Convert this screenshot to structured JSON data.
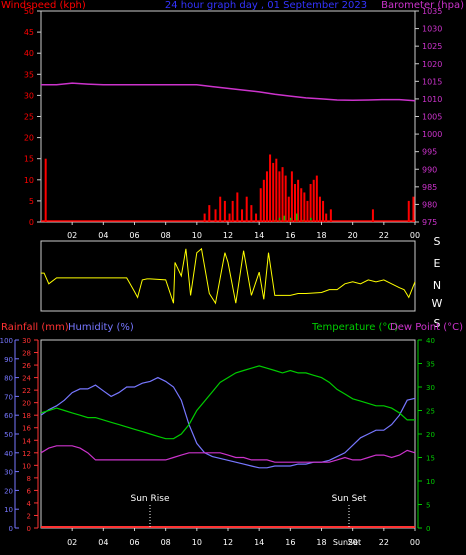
{
  "header": {
    "left_title": "Windspeed (kph)",
    "center_title": "24 hour graph day , 01 September 2023",
    "right_title": "Barometer (hpa)"
  },
  "labels": {
    "rainfall": "Rainfall (mm)",
    "humidity": "Humidity (%)",
    "temperature": "Temperature (°C)",
    "dewpoint": "Dew Point (°C)",
    "sunrise": "Sun Rise",
    "sunset": "Sun Set",
    "sunset_bottom": "SunSet"
  },
  "colors": {
    "wind": "#ff0000",
    "barometer": "#cc33cc",
    "title_blue": "#3333ff",
    "direction": "#ffff00",
    "humidity": "#7777ff",
    "temperature": "#00cc00",
    "dewpoint": "#cc33cc",
    "rainfall": "#ff3333",
    "axis": "#cccccc"
  },
  "x_ticks": [
    "02",
    "04",
    "06",
    "08",
    "10",
    "12",
    "14",
    "16",
    "18",
    "20",
    "22",
    "00"
  ],
  "direction_labels": [
    "S",
    "E",
    "N",
    "W",
    "S"
  ],
  "chart_data": [
    {
      "type": "line",
      "title": "24 hour graph day , 01 September 2023",
      "x_range": [
        0,
        24
      ],
      "left_axis": {
        "label": "Windspeed (kph)",
        "range": [
          0,
          50
        ],
        "ticks": [
          0,
          5,
          10,
          15,
          20,
          25,
          30,
          35,
          40,
          45,
          50
        ]
      },
      "right_axis": {
        "label": "Barometer (hpa)",
        "range": [
          975,
          1035
        ],
        "ticks": [
          975,
          980,
          985,
          990,
          995,
          1000,
          1005,
          1010,
          1015,
          1020,
          1025,
          1030,
          1035
        ]
      },
      "series": [
        {
          "name": "Windspeed (kph)",
          "kind": "bar",
          "axis": "left",
          "x": [
            0.3,
            10.5,
            10.8,
            11.2,
            11.5,
            11.8,
            12.1,
            12.3,
            12.6,
            12.9,
            13.2,
            13.5,
            13.8,
            14.1,
            14.3,
            14.5,
            14.7,
            14.9,
            15.1,
            15.3,
            15.5,
            15.7,
            15.9,
            16.1,
            16.3,
            16.5,
            16.7,
            16.9,
            17.1,
            17.3,
            17.5,
            17.7,
            17.9,
            18.1,
            18.3,
            18.6,
            21.3,
            23.6,
            23.9
          ],
          "values": [
            15,
            2,
            4,
            3,
            6,
            5,
            2,
            5,
            7,
            3,
            6,
            4,
            2,
            8,
            10,
            12,
            16,
            14,
            15,
            12,
            13,
            11,
            6,
            12,
            9,
            10,
            8,
            7,
            5,
            9,
            10,
            11,
            6,
            5,
            2,
            3,
            3,
            5,
            6
          ]
        },
        {
          "name": "Windspeed gust",
          "kind": "bar",
          "axis": "left",
          "x": [
            15.0,
            15.3,
            15.6,
            16.0,
            16.4,
            16.8,
            17.3
          ],
          "values": [
            0.5,
            1,
            1.5,
            1,
            2,
            0.5,
            1
          ]
        },
        {
          "name": "Barometer (hpa)",
          "kind": "line",
          "axis": "right",
          "x": [
            0,
            1,
            2,
            3,
            4,
            5,
            6,
            7,
            8,
            9,
            10,
            11,
            12,
            13,
            14,
            15,
            16,
            17,
            18,
            19,
            20,
            21,
            22,
            23,
            24
          ],
          "values": [
            1014,
            1014,
            1014.5,
            1014.2,
            1014,
            1014,
            1014,
            1014,
            1014,
            1014,
            1014,
            1013.5,
            1013,
            1012.5,
            1012,
            1011.3,
            1010.8,
            1010.3,
            1010,
            1009.7,
            1009.6,
            1009.7,
            1009.8,
            1009.8,
            1009.5
          ]
        }
      ]
    },
    {
      "type": "line",
      "title": "Wind direction",
      "x_range": [
        0,
        24
      ],
      "direction_axis": [
        "S",
        "E",
        "N",
        "W",
        "S"
      ],
      "series": [
        {
          "name": "Wind direction",
          "axis": "direction",
          "x": [
            0,
            0.2,
            0.5,
            1,
            2,
            3,
            4,
            5,
            5.5,
            6.0,
            6.2,
            6.5,
            6.8,
            7,
            8,
            8.5,
            8.6,
            9,
            9.3,
            9.6,
            10,
            10.3,
            10.8,
            11.2,
            11.5,
            11.8,
            12,
            12.5,
            13,
            13.5,
            14,
            14.3,
            14.6,
            15,
            16,
            16.5,
            17,
            18,
            18.5,
            19,
            19.5,
            20,
            20.5,
            21,
            21.5,
            22,
            22.5,
            23,
            23.3,
            23.6,
            24
          ],
          "values": [
            195,
            195,
            140,
            170,
            170,
            170,
            170,
            170,
            170,
            100,
            70,
            160,
            165,
            165,
            160,
            40,
            250,
            180,
            320,
            80,
            300,
            320,
            90,
            40,
            170,
            300,
            250,
            40,
            310,
            80,
            200,
            60,
            300,
            80,
            80,
            90,
            90,
            95,
            110,
            110,
            140,
            150,
            140,
            160,
            150,
            160,
            140,
            120,
            110,
            70,
            150
          ]
        }
      ]
    },
    {
      "type": "line",
      "title": "",
      "x_range": [
        0,
        24
      ],
      "rainfall_axis": {
        "label": "Rainfall (mm)",
        "range": [
          0,
          30
        ],
        "ticks": [
          0,
          2,
          4,
          6,
          8,
          10,
          12,
          14,
          16,
          18,
          20,
          22,
          24,
          26,
          28,
          30
        ]
      },
      "humidity_axis": {
        "label": "Humidity (%)",
        "range": [
          0,
          100
        ],
        "ticks": [
          0,
          10,
          20,
          30,
          40,
          50,
          60,
          70,
          80,
          90,
          100
        ]
      },
      "temperature_axis": {
        "label": "Temperature (°C)",
        "range": [
          0,
          40
        ],
        "ticks": [
          0,
          5,
          10,
          15,
          20,
          25,
          30,
          35,
          40
        ]
      },
      "annotations": [
        {
          "label": "Sun Rise",
          "x": 7.0
        },
        {
          "label": "Sun Set",
          "x": 20.0
        }
      ],
      "series": [
        {
          "name": "Humidity (%)",
          "axis": "humidity",
          "x": [
            0,
            0.5,
            1,
            1.5,
            2,
            2.5,
            3,
            3.5,
            4,
            4.5,
            5,
            5.5,
            6,
            6.5,
            7,
            7.5,
            8,
            8.5,
            9,
            9.5,
            10,
            10.5,
            11,
            11.5,
            12,
            12.5,
            13,
            13.5,
            14,
            14.5,
            15,
            15.5,
            16,
            16.5,
            17,
            17.5,
            18,
            18.5,
            19,
            19.5,
            20,
            20.5,
            21,
            21.5,
            22,
            22.5,
            23,
            23.5,
            24
          ],
          "values": [
            60,
            63,
            65,
            68,
            72,
            74,
            74,
            76,
            73,
            70,
            72,
            75,
            75,
            77,
            78,
            80,
            78,
            75,
            68,
            55,
            45,
            40,
            38,
            37,
            36,
            35,
            34,
            33,
            32,
            32,
            33,
            33,
            33,
            34,
            34,
            35,
            35,
            36,
            38,
            40,
            44,
            48,
            50,
            52,
            52,
            55,
            60,
            68,
            69
          ]
        },
        {
          "name": "Temperature (°C)",
          "axis": "temperature",
          "x": [
            0,
            0.5,
            1,
            1.5,
            2,
            2.5,
            3,
            3.5,
            4,
            4.5,
            5,
            5.5,
            6,
            6.5,
            7,
            7.5,
            8,
            8.5,
            9,
            9.5,
            10,
            10.5,
            11,
            11.5,
            12,
            12.5,
            13,
            13.5,
            14,
            14.5,
            15,
            15.5,
            16,
            16.5,
            17,
            17.5,
            18,
            18.5,
            19,
            19.5,
            20,
            20.5,
            21,
            21.5,
            22,
            22.5,
            23,
            23.5,
            24
          ],
          "values": [
            24.5,
            25,
            25.5,
            25,
            24.5,
            24,
            23.5,
            23.5,
            23,
            22.5,
            22,
            21.5,
            21,
            20.5,
            20,
            19.5,
            19,
            19,
            20,
            22,
            25,
            27,
            29,
            31,
            32,
            33,
            33.5,
            34,
            34.5,
            34,
            33.5,
            33,
            33.5,
            33,
            33,
            32.5,
            32,
            31,
            29.5,
            28.5,
            27.5,
            27,
            26.5,
            26,
            26,
            25.5,
            24.5,
            23,
            23
          ]
        },
        {
          "name": "Dew Point (°C)",
          "axis": "temperature",
          "x": [
            0,
            0.5,
            1,
            1.5,
            2,
            2.5,
            3,
            3.5,
            4,
            4.5,
            5,
            5.5,
            6,
            6.5,
            7,
            7.5,
            8,
            8.5,
            9,
            9.5,
            10,
            10.5,
            11,
            11.5,
            12,
            12.5,
            13,
            13.5,
            14,
            14.5,
            15,
            15.5,
            16,
            16.5,
            17,
            17.5,
            18,
            18.5,
            19,
            19.5,
            20,
            20.5,
            21,
            21.5,
            22,
            22.5,
            23,
            23.5,
            24
          ],
          "values": [
            16,
            17,
            17.5,
            17.5,
            17.5,
            17,
            16,
            14.5,
            14.5,
            14.5,
            14.5,
            14.5,
            14.5,
            14.5,
            14.5,
            14.5,
            14.5,
            15,
            15.5,
            16,
            16,
            16,
            16,
            16,
            15.5,
            15,
            15,
            14.5,
            14.5,
            14.5,
            14,
            14,
            14,
            14,
            14,
            14,
            14,
            14,
            14.5,
            15,
            14.5,
            14.5,
            15,
            15.5,
            15.5,
            15,
            15.5,
            16.5,
            16
          ]
        },
        {
          "name": "Rainfall (mm)",
          "axis": "rainfall",
          "x": [
            0,
            24
          ],
          "values": [
            0,
            0
          ]
        }
      ]
    }
  ]
}
